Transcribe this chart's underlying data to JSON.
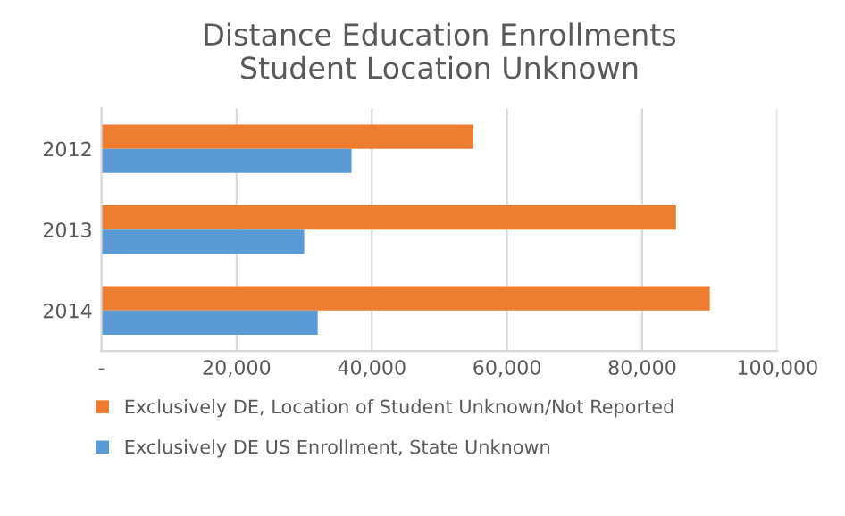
{
  "chart_data": {
    "type": "bar",
    "orientation": "horizontal",
    "title": "Distance Education Enrollments\nStudent Location Unknown",
    "categories": [
      "2012",
      "2013",
      "2014"
    ],
    "series": [
      {
        "name": "Exclusively DE, Location of Student Unknown/Not Reported",
        "color": "#ed7d31",
        "values": [
          55000,
          85000,
          90000
        ]
      },
      {
        "name": "Exclusively DE US Enrollment, State Unknown",
        "color": "#5b9bd5",
        "values": [
          37000,
          30000,
          32000
        ]
      }
    ],
    "xlim": [
      0,
      100000
    ],
    "xticks": [
      {
        "value": 0,
        "label": "-"
      },
      {
        "value": 20000,
        "label": "20,000"
      },
      {
        "value": 40000,
        "label": "40,000"
      },
      {
        "value": 60000,
        "label": "60,000"
      },
      {
        "value": 80000,
        "label": "80,000"
      },
      {
        "value": 100000,
        "label": "100,000"
      }
    ],
    "grid": "x",
    "legend": "bottom"
  }
}
